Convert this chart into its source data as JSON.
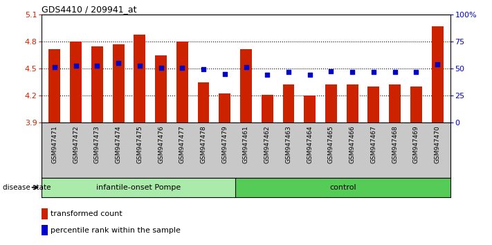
{
  "title": "GDS4410 / 209941_at",
  "samples": [
    "GSM947471",
    "GSM947472",
    "GSM947473",
    "GSM947474",
    "GSM947475",
    "GSM947476",
    "GSM947477",
    "GSM947478",
    "GSM947479",
    "GSM947461",
    "GSM947462",
    "GSM947463",
    "GSM947464",
    "GSM947465",
    "GSM947466",
    "GSM947467",
    "GSM947468",
    "GSM947469",
    "GSM947470"
  ],
  "bar_values": [
    4.72,
    4.8,
    4.75,
    4.77,
    4.88,
    4.65,
    4.8,
    4.35,
    4.22,
    4.72,
    4.21,
    4.32,
    4.2,
    4.32,
    4.32,
    4.3,
    4.32,
    4.3,
    4.97
  ],
  "dot_values": [
    4.52,
    4.53,
    4.53,
    4.56,
    4.53,
    4.51,
    4.51,
    4.49,
    4.44,
    4.52,
    4.43,
    4.46,
    4.43,
    4.47,
    4.46,
    4.46,
    4.46,
    4.46,
    4.55
  ],
  "ylim": [
    3.9,
    5.1
  ],
  "yticks": [
    3.9,
    4.2,
    4.5,
    4.8,
    5.1
  ],
  "bar_color": "#CC2200",
  "dot_color": "#0000CC",
  "group1_label": "infantile-onset Pompe",
  "group2_label": "control",
  "group1_count": 9,
  "group2_count": 10,
  "group1_color": "#AAEAAA",
  "group2_color": "#55CC55",
  "disease_state_label": "disease state",
  "legend_bar_label": "transformed count",
  "legend_dot_label": "percentile rank within the sample",
  "right_yticks": [
    0,
    25,
    50,
    75,
    100
  ],
  "right_yticklabels": [
    "0",
    "25",
    "50",
    "75",
    "100%"
  ],
  "bar_width": 0.55,
  "grid_dotted_values": [
    4.2,
    4.5,
    4.8
  ],
  "label_bg": "#C8C8C8"
}
